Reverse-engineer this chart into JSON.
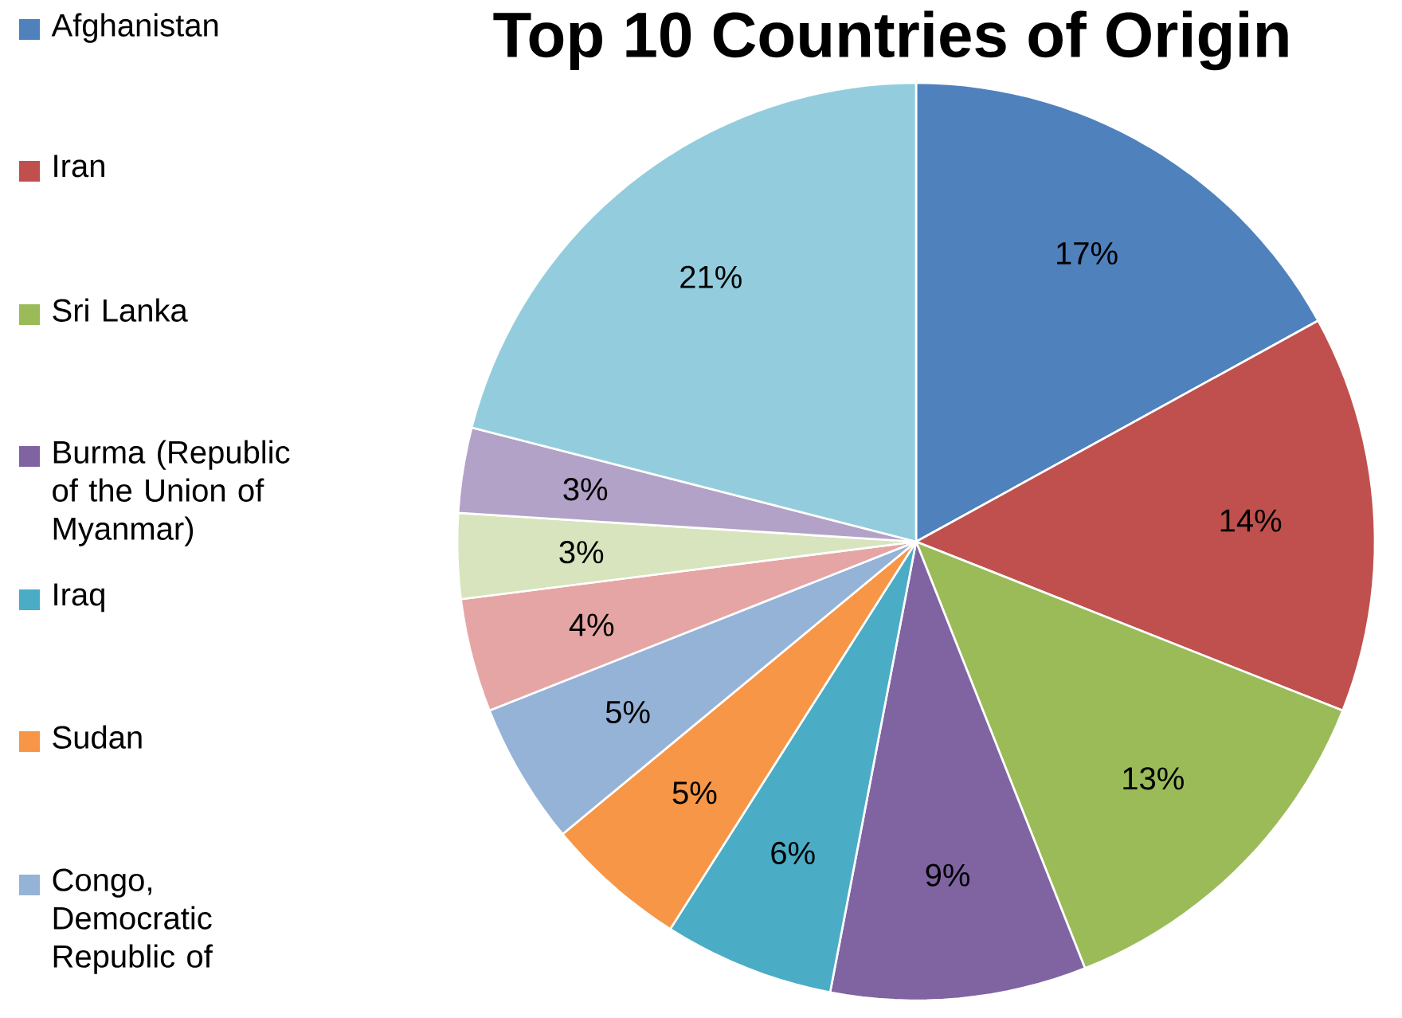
{
  "chart_data": {
    "type": "pie",
    "title": "Top 10 Countries of Origin",
    "categories": [
      "Afghanistan",
      "Iran",
      "Sri Lanka",
      "Burma (Republic of the Union of Myanmar)",
      "Iraq",
      "Sudan",
      "Congo, Democratic Republic of",
      null,
      null,
      null,
      null
    ],
    "values": [
      17,
      14,
      13,
      9,
      6,
      5,
      5,
      4,
      3,
      3,
      21
    ],
    "colors": [
      "#4f81bd",
      "#c0504d",
      "#9bbb59",
      "#8064a2",
      "#4bacc6",
      "#f79646",
      "#95b3d7",
      "#e6a5a5",
      "#d7e4bd",
      "#b3a2c7",
      "#93cddd"
    ],
    "value_labels": [
      "17%",
      "14%",
      "13%",
      "9%",
      "6%",
      "5%",
      "5%",
      "4%",
      "3%",
      "3%",
      "21%"
    ],
    "legend": "left"
  }
}
